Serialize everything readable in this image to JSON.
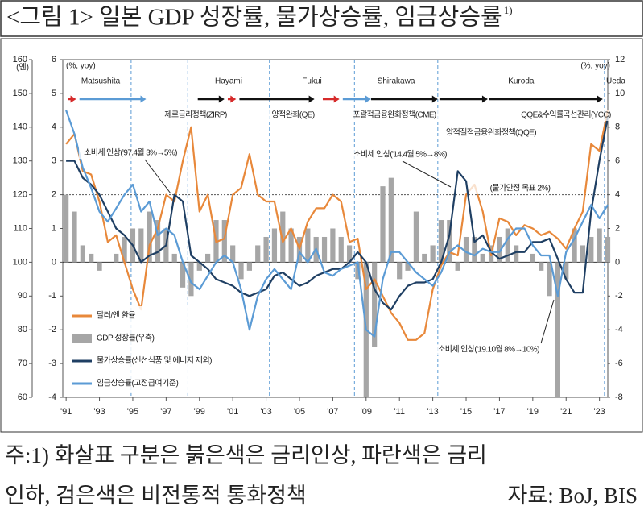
{
  "chart_data": {
    "type": "combo",
    "title": "<그림 1> 일본 GDP 성장률, 물가상승률, 임금상승률",
    "title_note": "1)",
    "footnotes": [
      "주:1) 화살표 구분은 붉은색은 금리인상, 파란색은 금리",
      "인하, 검은색은 비전통적 통화정책"
    ],
    "source": "자료: BoJ, BIS",
    "y_unit": "(엔)",
    "y2_unit": "(%, yoy)",
    "y3_unit": "(%, yoy)",
    "xlim": [
      1990.8,
      2023.5
    ],
    "xticks": [
      {
        "value": 1991,
        "label": "'91"
      },
      {
        "value": 1993,
        "label": "'93"
      },
      {
        "value": 1995,
        "label": "'95"
      },
      {
        "value": 1997,
        "label": "'97"
      },
      {
        "value": 1999,
        "label": "'99"
      },
      {
        "value": 2001,
        "label": "'01"
      },
      {
        "value": 2003,
        "label": "'03"
      },
      {
        "value": 2005,
        "label": "'05"
      },
      {
        "value": 2007,
        "label": "'07"
      },
      {
        "value": 2009,
        "label": "'09"
      },
      {
        "value": 2011,
        "label": "'11"
      },
      {
        "value": 2013,
        "label": "'13"
      },
      {
        "value": 2015,
        "label": "'15"
      },
      {
        "value": 2017,
        "label": "'17"
      },
      {
        "value": 2019,
        "label": "'19"
      },
      {
        "value": 2021,
        "label": "'21"
      },
      {
        "value": 2023,
        "label": "'23"
      }
    ],
    "ylim": [
      60,
      160
    ],
    "yticks": [
      60,
      70,
      80,
      90,
      100,
      110,
      120,
      130,
      140,
      150,
      160
    ],
    "y2lim": [
      -4,
      6
    ],
    "y2ticks": [
      -4,
      -3,
      -2,
      -1,
      0,
      1,
      2,
      3,
      4,
      5,
      6
    ],
    "y3lim": [
      -8,
      12
    ],
    "y3ticks": [
      -8,
      -6,
      -4,
      -2,
      0,
      2,
      4,
      6,
      8,
      10,
      12
    ],
    "x": [
      1991,
      1991.5,
      1992,
      1992.5,
      1993,
      1993.5,
      1994,
      1994.5,
      1995,
      1995.5,
      1996,
      1996.5,
      1997,
      1997.5,
      1998,
      1998.5,
      1999,
      1999.5,
      2000,
      2000.5,
      2001,
      2001.5,
      2002,
      2002.5,
      2003,
      2003.5,
      2004,
      2004.5,
      2005,
      2005.5,
      2006,
      2006.5,
      2007,
      2007.5,
      2008,
      2008.5,
      2009,
      2009.5,
      2010,
      2010.5,
      2011,
      2011.5,
      2012,
      2012.5,
      2013,
      2013.5,
      2014,
      2014.5,
      2015,
      2015.5,
      2016,
      2016.5,
      2017,
      2017.5,
      2018,
      2018.5,
      2019,
      2019.5,
      2020,
      2020.5,
      2021,
      2021.5,
      2022,
      2022.5,
      2023,
      2023.5
    ],
    "series": [
      {
        "name": "GDP 성장률(우축)",
        "kind": "bar",
        "axis": "y3",
        "color": "#a6a6a6",
        "values": [
          4,
          3,
          1,
          0.5,
          -0.5,
          0,
          0.5,
          1.5,
          2,
          2,
          3,
          2.5,
          2,
          0.5,
          -1.5,
          -2,
          -0.5,
          0.5,
          2.5,
          2.5,
          1,
          -1,
          -0.5,
          1,
          1.5,
          2,
          3,
          2,
          1.5,
          2,
          1.5,
          1.5,
          2,
          1.5,
          1,
          -1,
          -8,
          -5,
          4.5,
          5,
          -1,
          -0.5,
          3,
          0.5,
          1,
          2.5,
          2.5,
          -0.5,
          1.5,
          1.5,
          0.5,
          1,
          1.5,
          2,
          1,
          0,
          0.5,
          -0.5,
          -2,
          -8,
          -1,
          2,
          1,
          1.5,
          2,
          1.5
        ]
      },
      {
        "name": "달러/엔 환율",
        "kind": "line",
        "axis": "y",
        "color": "#e8883a",
        "values": [
          135,
          138,
          127,
          126,
          118,
          106,
          108,
          100,
          92,
          86,
          105,
          110,
          120,
          118,
          130,
          140,
          115,
          120,
          106,
          107,
          120,
          122,
          132,
          120,
          118,
          118,
          106,
          110,
          104,
          112,
          116,
          116,
          120,
          118,
          106,
          107,
          92,
          95,
          90,
          85,
          82,
          77,
          77,
          79,
          92,
          99,
          103,
          102,
          120,
          123,
          115,
          102,
          113,
          112,
          108,
          111,
          110,
          108,
          109,
          107,
          104,
          110,
          115,
          135,
          133,
          145
        ]
      },
      {
        "name": "물가상승률(신선식품 및 에너지 제외)",
        "kind": "line",
        "axis": "y2",
        "color": "#1f3f63",
        "values": [
          3,
          3,
          2.5,
          2.3,
          2,
          1.5,
          1,
          0.8,
          0.5,
          0,
          0.2,
          0.3,
          0.5,
          2,
          1.8,
          0.2,
          0,
          -0.2,
          -0.5,
          -0.6,
          -0.7,
          -0.9,
          -1,
          -0.9,
          -0.8,
          -0.4,
          -0.3,
          -0.5,
          -0.7,
          -0.6,
          -0.4,
          -0.3,
          -0.2,
          -0.2,
          0,
          0.3,
          0,
          -0.8,
          -1.2,
          -1.4,
          -1,
          -0.7,
          -0.6,
          -0.6,
          -0.5,
          0,
          0.8,
          2.7,
          2.4,
          0.6,
          0.8,
          0.3,
          0.1,
          0.2,
          0.3,
          0.3,
          0.6,
          0.6,
          0.7,
          0.1,
          -0.5,
          -0.9,
          -0.9,
          1.5,
          3,
          4.3
        ]
      },
      {
        "name": "임금상승률(고정급여기준)",
        "kind": "line",
        "axis": "y2",
        "color": "#5b9bd5",
        "values": [
          4.5,
          3.8,
          2.8,
          2.2,
          1.5,
          1.2,
          1.6,
          2,
          2.3,
          1.5,
          1.8,
          0.8,
          1,
          0.8,
          0,
          -0.6,
          -0.8,
          -0.4,
          0,
          0.2,
          0,
          -0.8,
          -2,
          -1,
          -0.5,
          -0.2,
          -0.5,
          -0.8,
          0.3,
          0,
          0.4,
          -0.3,
          -0.4,
          -0.2,
          -0.1,
          0,
          -2,
          -2.2,
          -0.5,
          0.3,
          0.3,
          0,
          -0.3,
          -0.5,
          -0.7,
          -0.3,
          0.3,
          0.5,
          0.3,
          0.2,
          0.4,
          0.3,
          0.3,
          0.7,
          1,
          1,
          0.5,
          0.2,
          0.2,
          -1,
          0.3,
          0.7,
          1.2,
          1.7,
          1.3,
          1.7
        ]
      }
    ],
    "legend_order": [
      1,
      0,
      2,
      3
    ],
    "target_line": 2,
    "governors": [
      {
        "name": "Matsushita",
        "start": 1994.9
      },
      {
        "name": "Hayami",
        "start": 1998.3
      },
      {
        "name": "Fukui",
        "start": 2003.2
      },
      {
        "name": "Shirakawa",
        "start": 2008.3
      },
      {
        "name": "Kuroda",
        "start": 2013.3
      },
      {
        "name": "Ueda",
        "start": 2023.3
      }
    ],
    "policy_arrows": [
      {
        "start": 1991.1,
        "end": 1991.6,
        "color": "#d62b2b"
      },
      {
        "start": 1991.8,
        "end": 1995.8,
        "color": "#5b9bd5"
      },
      {
        "start": 1998.9,
        "end": 2000.5,
        "color": "#111111"
      },
      {
        "start": 2000.7,
        "end": 2001.2,
        "color": "#d62b2b"
      },
      {
        "start": 2001.4,
        "end": 2005.9,
        "color": "#111111"
      },
      {
        "start": 2006.4,
        "end": 2007.4,
        "color": "#d62b2b"
      },
      {
        "start": 2007.6,
        "end": 2009.3,
        "color": "#5b9bd5"
      },
      {
        "start": 2009.3,
        "end": 2013.3,
        "color": "#111111"
      },
      {
        "start": 2013.4,
        "end": 2016.3,
        "color": "#111111"
      },
      {
        "start": 2016.4,
        "end": 2023.2,
        "color": "#111111"
      }
    ],
    "annotations": [
      "제로금리정책(ZIRP)",
      "양적완화(QE)",
      "포괄적금융완화정책(CME)",
      "양적질적금융완화정책(QQE)",
      "QQE&수익률곡선관리(YCC)",
      "소비세 인상('97.4월 3%→5%)",
      "소비세 인상('14.4월 5%→8%)",
      "(물가안정 목표 2%)",
      "소비세 인상('19.10월 8%→10%)"
    ]
  }
}
